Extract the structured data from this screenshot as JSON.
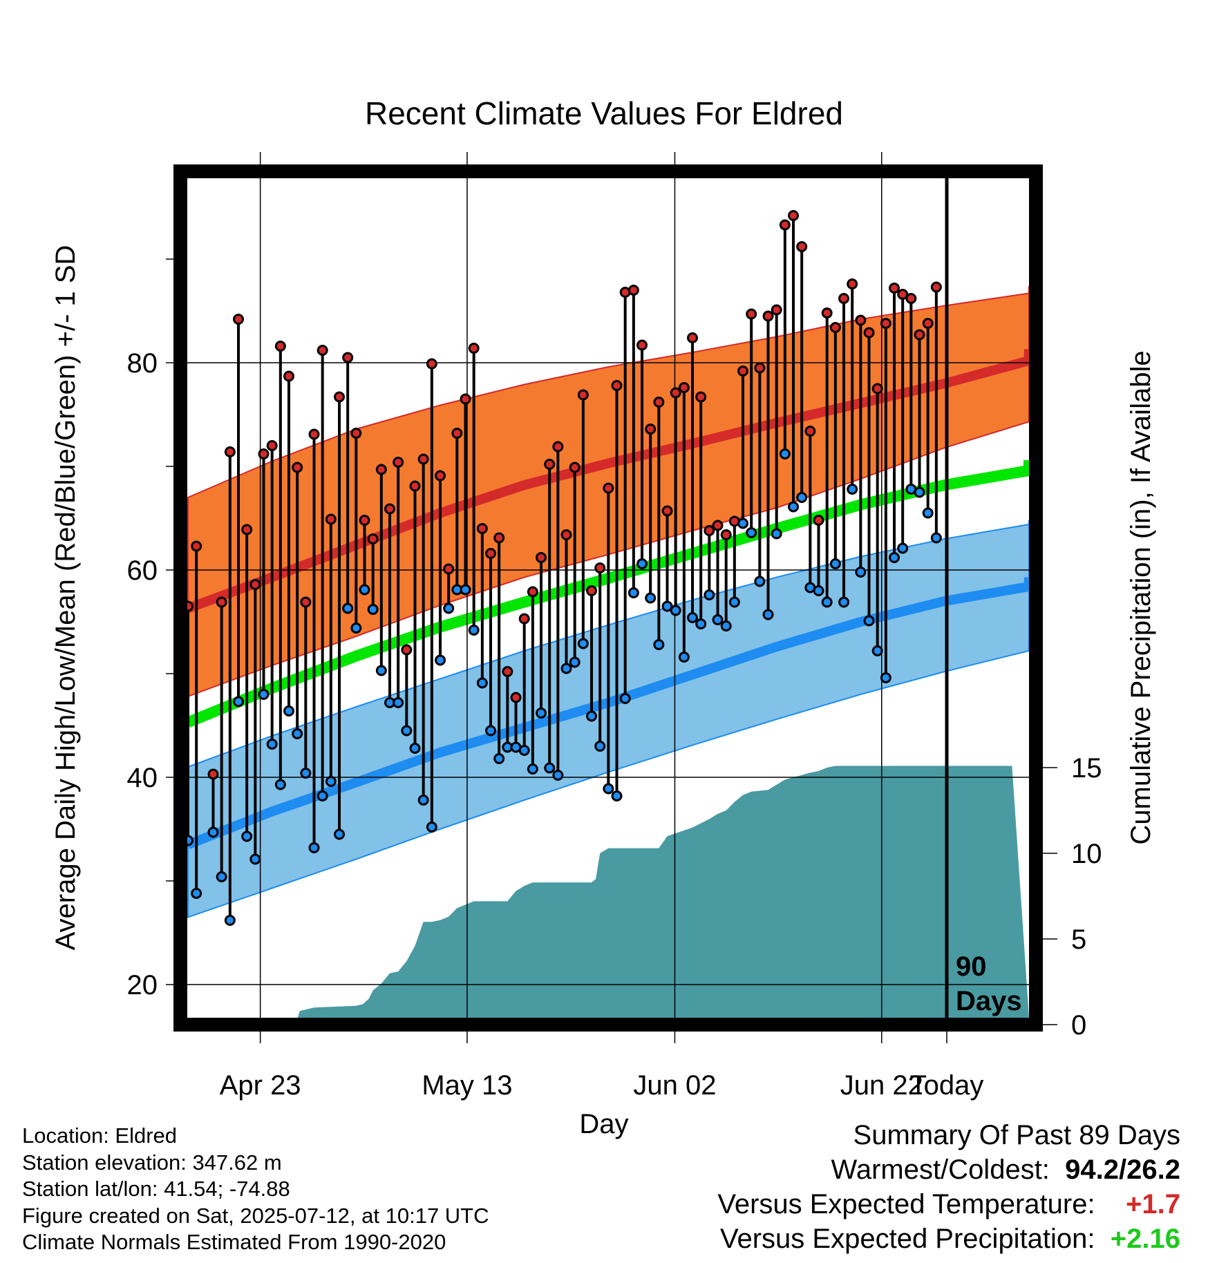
{
  "title": "Recent Climate Values For Eldred",
  "y_axis_left_label": "Average Daily High/Low/Mean (Red/Blue/Green) +/- 1 SD",
  "y_axis_right_label": "Cumulative Precipitation (in), If Available",
  "x_axis_label": "Day",
  "period_label_line1": "90",
  "period_label_line2": "Days",
  "footer": {
    "location": "Location: Eldred",
    "elevation": "Station elevation: 347.62 m",
    "latlon": "Station lat/lon: 41.54; -74.88",
    "created": "Figure created on Sat, 2025-07-12, at 10:17 UTC",
    "normals": "Climate Normals Estimated From 1990-2020"
  },
  "summary": {
    "heading": "Summary Of Past 89 Days",
    "warmest_coldest_label": "Warmest/Coldest:",
    "warmest": "94.2",
    "slash": "/",
    "coldest": "26.2",
    "temp_label": "Versus Expected Temperature:",
    "temp_value": "+1.7",
    "precip_label": "Versus Expected Precipitation:",
    "precip_value": "+2.16"
  },
  "colors": {
    "high": "#d42a2a",
    "high_band": "#f47a30",
    "low": "#1e8cf0",
    "low_band": "#82c1e8",
    "mean": "#00e600",
    "precip": "#4a9aa2",
    "warm_text": "#d42a2a",
    "wet_text": "#1ec81e"
  },
  "chart_data": {
    "type": "line",
    "x_ticks": [
      "Apr 23",
      "May 13",
      "Jun 02",
      "Jun 22",
      "Today"
    ],
    "y_left_ticks": [
      20,
      40,
      60,
      80
    ],
    "y_right_ticks": [
      0,
      5,
      10,
      15
    ],
    "ylim_left": [
      16.8,
      97.8
    ],
    "ylim_right": [
      0,
      18
    ],
    "grid": true,
    "day_span": 90,
    "normals": {
      "high_mean": [
        [
          0,
          56.3
        ],
        [
          10,
          59.3
        ],
        [
          20,
          62.4
        ],
        [
          30,
          65.5
        ],
        [
          40,
          68.2
        ],
        [
          50,
          70.3
        ],
        [
          60,
          72.2
        ],
        [
          70,
          74.2
        ],
        [
          80,
          76.1
        ],
        [
          90,
          78.0
        ],
        [
          100,
          80.2
        ],
        [
          110,
          81.3
        ],
        [
          115,
          81.3
        ]
      ],
      "high_upper": [
        [
          0,
          67.0
        ],
        [
          10,
          70.5
        ],
        [
          20,
          73.6
        ],
        [
          30,
          75.9
        ],
        [
          40,
          77.9
        ],
        [
          50,
          79.6
        ],
        [
          60,
          81.0
        ],
        [
          70,
          82.5
        ],
        [
          80,
          84.2
        ],
        [
          90,
          85.5
        ],
        [
          100,
          86.7
        ],
        [
          110,
          87.4
        ],
        [
          115,
          87.4
        ]
      ],
      "high_lower": [
        [
          0,
          47.8
        ],
        [
          10,
          50.8
        ],
        [
          20,
          53.6
        ],
        [
          30,
          56.6
        ],
        [
          40,
          59.3
        ],
        [
          50,
          61.5
        ],
        [
          60,
          63.8
        ],
        [
          70,
          66.0
        ],
        [
          80,
          68.8
        ],
        [
          90,
          71.8
        ],
        [
          100,
          74.3
        ],
        [
          110,
          75.6
        ],
        [
          115,
          75.7
        ]
      ],
      "mean": [
        [
          0,
          45.3
        ],
        [
          10,
          48.6
        ],
        [
          20,
          51.7
        ],
        [
          30,
          54.5
        ],
        [
          40,
          56.9
        ],
        [
          50,
          59.2
        ],
        [
          60,
          61.6
        ],
        [
          70,
          64.0
        ],
        [
          80,
          66.3
        ],
        [
          90,
          68.2
        ],
        [
          100,
          69.6
        ],
        [
          110,
          70.6
        ],
        [
          115,
          70.6
        ]
      ],
      "low_mean": [
        [
          0,
          33.5
        ],
        [
          10,
          36.7
        ],
        [
          20,
          39.5
        ],
        [
          30,
          42.4
        ],
        [
          40,
          44.8
        ],
        [
          50,
          47.2
        ],
        [
          60,
          49.9
        ],
        [
          70,
          52.6
        ],
        [
          80,
          55.0
        ],
        [
          90,
          57.0
        ],
        [
          100,
          58.4
        ],
        [
          110,
          59.3
        ],
        [
          115,
          59.3
        ]
      ],
      "low_upper": [
        [
          0,
          41.0
        ],
        [
          10,
          44.0
        ],
        [
          20,
          46.8
        ],
        [
          30,
          49.5
        ],
        [
          40,
          52.2
        ],
        [
          50,
          54.7
        ],
        [
          60,
          57.1
        ],
        [
          70,
          59.3
        ],
        [
          80,
          61.3
        ],
        [
          90,
          63.0
        ],
        [
          100,
          64.4
        ],
        [
          110,
          64.8
        ],
        [
          115,
          64.8
        ]
      ],
      "low_lower": [
        [
          0,
          26.5
        ],
        [
          10,
          29.3
        ],
        [
          20,
          32.1
        ],
        [
          30,
          35.0
        ],
        [
          40,
          37.8
        ],
        [
          50,
          40.5
        ],
        [
          60,
          43.1
        ],
        [
          70,
          45.6
        ],
        [
          80,
          48.0
        ],
        [
          90,
          50.2
        ],
        [
          100,
          52.2
        ],
        [
          110,
          53.8
        ],
        [
          115,
          54.0
        ]
      ]
    },
    "daily": [
      {
        "day": 0,
        "high": 56.5,
        "low": 33.9
      },
      {
        "day": 1,
        "high": 62.3,
        "low": 28.8
      },
      {
        "day": 3,
        "high": 40.3,
        "low": 34.7
      },
      {
        "day": 4,
        "high": 56.9,
        "low": 30.4
      },
      {
        "day": 5,
        "high": 71.4,
        "low": 26.2
      },
      {
        "day": 6,
        "high": 84.2,
        "low": 47.3
      },
      {
        "day": 7,
        "high": 63.9,
        "low": 34.3
      },
      {
        "day": 8,
        "high": 58.6,
        "low": 32.1
      },
      {
        "day": 9,
        "high": 71.2,
        "low": 48.0
      },
      {
        "day": 10,
        "high": 72.0,
        "low": 43.2
      },
      {
        "day": 11,
        "high": 81.6,
        "low": 39.3
      },
      {
        "day": 12,
        "high": 78.7,
        "low": 46.4
      },
      {
        "day": 13,
        "high": 69.9,
        "low": 44.2
      },
      {
        "day": 14,
        "high": 56.9,
        "low": 40.4
      },
      {
        "day": 15,
        "high": 73.1,
        "low": 33.2
      },
      {
        "day": 16,
        "high": 81.2,
        "low": 38.2
      },
      {
        "day": 17,
        "high": 64.9,
        "low": 39.6
      },
      {
        "day": 18,
        "high": 76.7,
        "low": 34.5
      },
      {
        "day": 19,
        "high": 80.5,
        "low": 56.3
      },
      {
        "day": 20,
        "high": 73.2,
        "low": 54.4
      },
      {
        "day": 21,
        "high": 64.8,
        "low": 58.1
      },
      {
        "day": 22,
        "high": 63.0,
        "low": 56.2
      },
      {
        "day": 23,
        "high": 69.7,
        "low": 50.3
      },
      {
        "day": 24,
        "high": 65.9,
        "low": 47.2
      },
      {
        "day": 25,
        "high": 70.4,
        "low": 47.2
      },
      {
        "day": 26,
        "high": 52.3,
        "low": 44.5
      },
      {
        "day": 27,
        "high": 68.1,
        "low": 42.8
      },
      {
        "day": 28,
        "high": 70.7,
        "low": 37.8
      },
      {
        "day": 29,
        "high": 79.9,
        "low": 35.2
      },
      {
        "day": 30,
        "high": 69.1,
        "low": 51.3
      },
      {
        "day": 31,
        "high": 60.1,
        "low": 56.3
      },
      {
        "day": 32,
        "high": 73.2,
        "low": 58.1
      },
      {
        "day": 33,
        "high": 76.5,
        "low": 58.1
      },
      {
        "day": 34,
        "high": 81.4,
        "low": 54.2
      },
      {
        "day": 35,
        "high": 64.0,
        "low": 49.1
      },
      {
        "day": 36,
        "high": 61.6,
        "low": 44.5
      },
      {
        "day": 37,
        "high": 63.1,
        "low": 41.8
      },
      {
        "day": 38,
        "high": 50.2,
        "low": 42.9
      },
      {
        "day": 39,
        "high": 47.7,
        "low": 42.9
      },
      {
        "day": 40,
        "high": 55.3,
        "low": 42.6
      },
      {
        "day": 41,
        "high": 57.9,
        "low": 40.8
      },
      {
        "day": 42,
        "high": 61.2,
        "low": 46.2
      },
      {
        "day": 43,
        "high": 70.2,
        "low": 40.9
      },
      {
        "day": 44,
        "high": 71.9,
        "low": 40.2
      },
      {
        "day": 45,
        "high": 63.4,
        "low": 50.5
      },
      {
        "day": 46,
        "high": 69.9,
        "low": 51.1
      },
      {
        "day": 47,
        "high": 76.9,
        "low": 52.9
      },
      {
        "day": 48,
        "high": 58.0,
        "low": 45.9
      },
      {
        "day": 49,
        "high": 60.2,
        "low": 43.0
      },
      {
        "day": 50,
        "high": 67.9,
        "low": 38.9
      },
      {
        "day": 51,
        "high": 77.8,
        "low": 38.2
      },
      {
        "day": 52,
        "high": 86.8,
        "low": 47.6
      },
      {
        "day": 53,
        "high": 87.0,
        "low": 57.8
      },
      {
        "day": 54,
        "high": 81.7,
        "low": 60.6
      },
      {
        "day": 55,
        "high": 73.6,
        "low": 57.3
      },
      {
        "day": 56,
        "high": 76.2,
        "low": 52.8
      },
      {
        "day": 57,
        "high": 65.7,
        "low": 56.5
      },
      {
        "day": 58,
        "high": 77.1,
        "low": 56.1
      },
      {
        "day": 59,
        "high": 77.6,
        "low": 51.6
      },
      {
        "day": 60,
        "high": 82.4,
        "low": 55.4
      },
      {
        "day": 61,
        "high": 76.7,
        "low": 54.8
      },
      {
        "day": 62,
        "high": 63.8,
        "low": 57.6
      },
      {
        "day": 63,
        "high": 64.3,
        "low": 55.2
      },
      {
        "day": 64,
        "high": 63.4,
        "low": 54.6
      },
      {
        "day": 65,
        "high": 64.7,
        "low": 56.9
      },
      {
        "day": 66,
        "high": 79.2,
        "low": 64.5
      },
      {
        "day": 67,
        "high": 84.7,
        "low": 63.6
      },
      {
        "day": 68,
        "high": 79.5,
        "low": 58.9
      },
      {
        "day": 69,
        "high": 84.5,
        "low": 55.7
      },
      {
        "day": 70,
        "high": 85.1,
        "low": 63.5
      },
      {
        "day": 71,
        "high": 93.3,
        "low": 71.2
      },
      {
        "day": 72,
        "high": 94.2,
        "low": 66.1
      },
      {
        "day": 73,
        "high": 91.2,
        "low": 67.0
      },
      {
        "day": 74,
        "high": 73.4,
        "low": 58.3
      },
      {
        "day": 75,
        "high": 64.8,
        "low": 58.0
      },
      {
        "day": 76,
        "high": 84.8,
        "low": 56.9
      },
      {
        "day": 77,
        "high": 83.4,
        "low": 60.6
      },
      {
        "day": 78,
        "high": 86.2,
        "low": 56.9
      },
      {
        "day": 79,
        "high": 87.6,
        "low": 67.8
      },
      {
        "day": 80,
        "high": 84.1,
        "low": 59.8
      },
      {
        "day": 81,
        "high": 82.9,
        "low": 55.1
      },
      {
        "day": 82,
        "high": 77.5,
        "low": 52.2
      },
      {
        "day": 83,
        "high": 83.8,
        "low": 49.6
      },
      {
        "day": 84,
        "high": 87.2,
        "low": 61.2
      },
      {
        "day": 85,
        "high": 86.6,
        "low": 62.1
      },
      {
        "day": 86,
        "high": 86.2,
        "low": 67.8
      },
      {
        "day": 87,
        "high": 82.7,
        "low": 67.5
      },
      {
        "day": 88,
        "high": 83.8,
        "low": 65.5
      },
      {
        "day": 89,
        "high": 87.3,
        "low": 63.1
      }
    ],
    "cumulative_precip": [
      [
        0,
        0
      ],
      [
        12.8,
        0
      ],
      [
        13.3,
        0.8
      ],
      [
        15,
        1.0
      ],
      [
        20,
        1.1
      ],
      [
        20.8,
        1.2
      ],
      [
        21.5,
        1.5
      ],
      [
        22,
        2.0
      ],
      [
        23,
        2.4
      ],
      [
        24,
        3.0
      ],
      [
        25,
        3.1
      ],
      [
        26,
        3.7
      ],
      [
        27,
        4.6
      ],
      [
        28,
        6.0
      ],
      [
        29,
        6.0
      ],
      [
        30,
        6.1
      ],
      [
        31,
        6.3
      ],
      [
        32,
        6.8
      ],
      [
        33,
        7.0
      ],
      [
        34,
        7.2
      ],
      [
        38,
        7.2
      ],
      [
        39,
        7.8
      ],
      [
        40,
        8.1
      ],
      [
        41,
        8.3
      ],
      [
        48,
        8.3
      ],
      [
        48.5,
        8.5
      ],
      [
        49,
        10.0
      ],
      [
        50,
        10.3
      ],
      [
        56,
        10.3
      ],
      [
        57,
        11.0
      ],
      [
        60,
        11.5
      ],
      [
        62,
        12.0
      ],
      [
        63,
        12.3
      ],
      [
        64,
        12.5
      ],
      [
        65,
        13.0
      ],
      [
        66,
        13.4
      ],
      [
        67,
        13.6
      ],
      [
        69,
        13.7
      ],
      [
        70,
        14.0
      ],
      [
        71,
        14.3
      ],
      [
        74,
        14.7
      ],
      [
        75,
        14.8
      ],
      [
        76,
        15.0
      ],
      [
        77,
        15.1
      ],
      [
        98,
        15.1
      ]
    ]
  }
}
